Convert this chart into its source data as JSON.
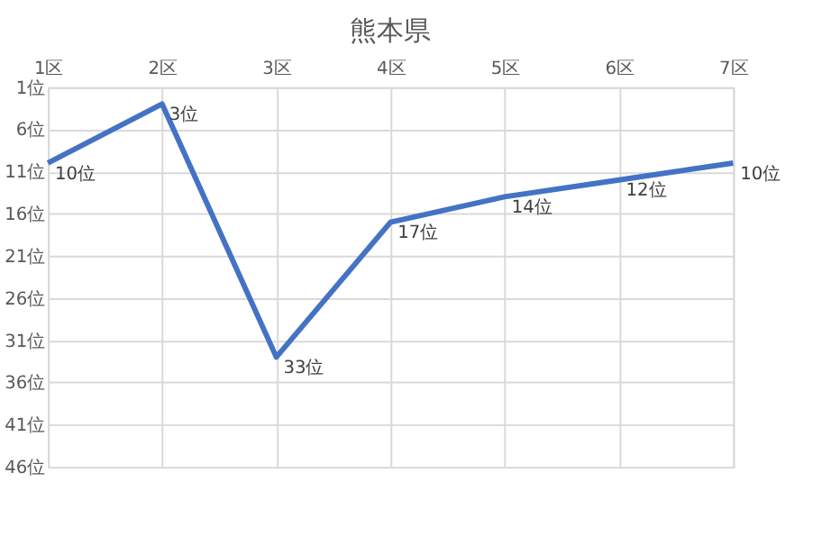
{
  "chart_data": {
    "type": "line",
    "title": "熊本県",
    "categories": [
      "1区",
      "2区",
      "3区",
      "4区",
      "5区",
      "6区",
      "7区"
    ],
    "series": [
      {
        "color": "#4472c4",
        "values": [
          10,
          3,
          33,
          17,
          14,
          12,
          10
        ],
        "value_labels": [
          "10位",
          "3位",
          "33位",
          "17位",
          "14位",
          "12位",
          "10位"
        ]
      }
    ],
    "ylim": [
      46,
      1
    ],
    "yticks": [
      {
        "value": 1,
        "label": "1位"
      },
      {
        "value": 6,
        "label": "6位"
      },
      {
        "value": 11,
        "label": "11位"
      },
      {
        "value": 16,
        "label": "16位"
      },
      {
        "value": 21,
        "label": "21位"
      },
      {
        "value": 26,
        "label": "26位"
      },
      {
        "value": 31,
        "label": "31位"
      },
      {
        "value": 36,
        "label": "36位"
      },
      {
        "value": 41,
        "label": "41位"
      },
      {
        "value": 46,
        "label": "46位"
      }
    ],
    "grid": true,
    "marker": "none",
    "line_style": "solid"
  }
}
